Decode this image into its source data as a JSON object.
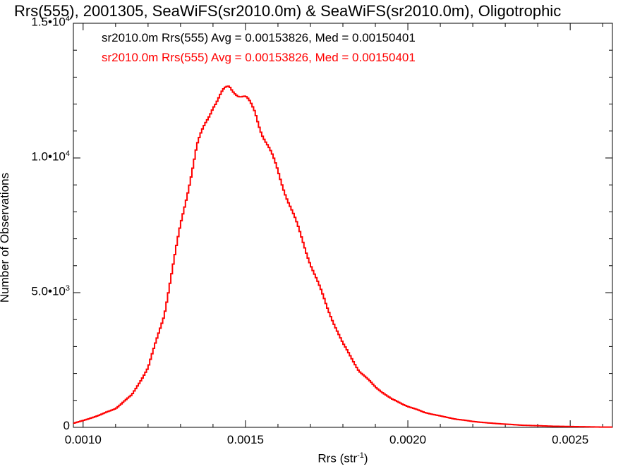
{
  "chart_data": {
    "type": "step",
    "title": "Rrs(555), 2001305, SeaWiFS(sr2010.0m) & SeaWiFS(sr2010.0m), Oligotrophic",
    "xlabel_base": "Rrs (str",
    "xlabel_sup": "-1",
    "xlabel_tail": ")",
    "ylabel": "Number of Observations",
    "xlim": [
      0.00097,
      0.00263
    ],
    "ylim": [
      0,
      15000
    ],
    "xticks": [
      {
        "value": 0.001,
        "label": "0.0010"
      },
      {
        "value": 0.0015,
        "label": "0.0015"
      },
      {
        "value": 0.002,
        "label": "0.0020"
      },
      {
        "value": 0.0025,
        "label": "0.0025"
      }
    ],
    "yticks": [
      {
        "value": 0,
        "label": "0",
        "sup": ""
      },
      {
        "value": 5000,
        "label": "5.0•10",
        "sup": "3"
      },
      {
        "value": 10000,
        "label": "1.0•10",
        "sup": "4"
      },
      {
        "value": 15000,
        "label": "1.5•10",
        "sup": "4"
      }
    ],
    "grid": false,
    "legend": [
      {
        "text": "sr2010.0m Rrs(555) Avg = 0.00153826, Med = 0.00150401",
        "color": "#000000"
      },
      {
        "text": "sr2010.0m Rrs(555) Avg = 0.00153826, Med = 0.00150401",
        "color": "#ff0000"
      }
    ],
    "series": [
      {
        "color": "#ff0000",
        "x": [
          0.00097,
          0.001,
          0.00105,
          0.0011,
          0.00115,
          0.0012,
          0.00125,
          0.0013,
          0.00135,
          0.0014,
          0.00143,
          0.00145,
          0.00147,
          0.0015,
          0.00153,
          0.00155,
          0.0016,
          0.00165,
          0.0017,
          0.00175,
          0.0018,
          0.00185,
          0.0019,
          0.00195,
          0.002,
          0.00205,
          0.0021,
          0.00215,
          0.0022,
          0.00225,
          0.0023,
          0.00235,
          0.0024,
          0.00245,
          0.0025,
          0.00255,
          0.0026,
          0.00263
        ],
        "values": [
          150,
          250,
          450,
          700,
          1200,
          2200,
          4200,
          7500,
          10400,
          12000,
          12400,
          12600,
          12500,
          12200,
          11700,
          11000,
          9500,
          7800,
          6100,
          4500,
          3100,
          2100,
          1500,
          1050,
          780,
          560,
          420,
          300,
          220,
          160,
          120,
          80,
          60,
          40,
          30,
          20,
          10,
          10
        ]
      }
    ]
  }
}
